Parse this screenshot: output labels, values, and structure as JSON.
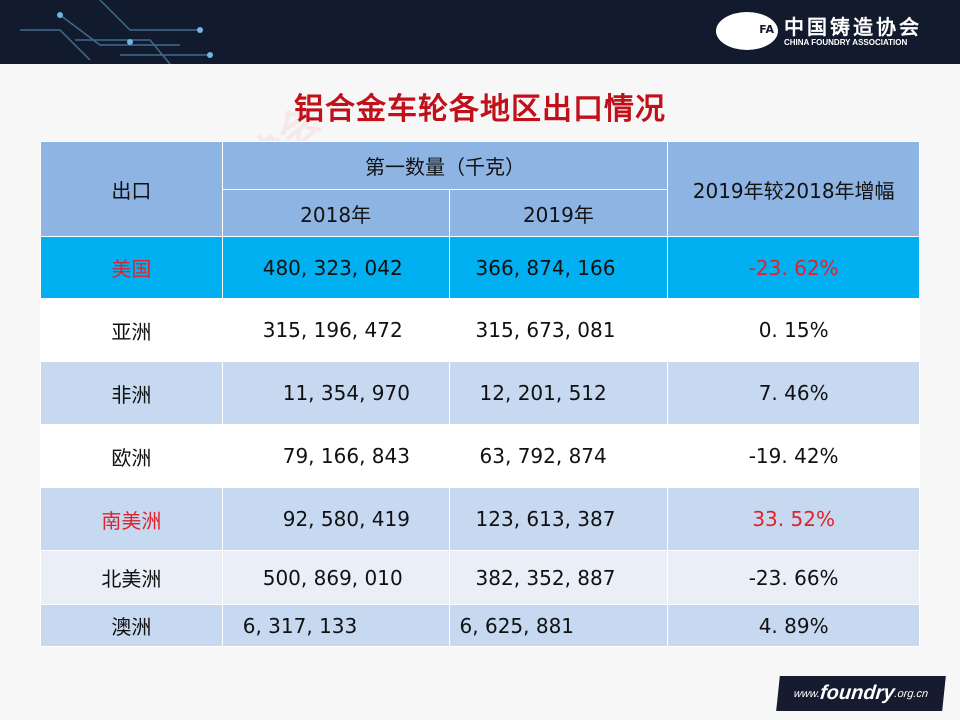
{
  "header": {
    "logo_cn": "中国铸造协会",
    "logo_en": "CHINA FOUNDRY ASSOCIATION",
    "logo_mark": "FA"
  },
  "title": "铝合金车轮各地区出口情况",
  "table": {
    "col_export": "出口",
    "col_group": "第一数量（千克）",
    "col_2018": "2018年",
    "col_2019": "2019年",
    "col_growth": "2019年较2018年增幅",
    "rows": [
      {
        "region": "美国",
        "v2018": "480, 323, 042",
        "v2019": "366, 874, 166",
        "growth": "-23. 62%",
        "highlight": true
      },
      {
        "region": "亚洲",
        "v2018": "315, 196, 472",
        "v2019": "315, 673, 081",
        "growth": "0. 15%"
      },
      {
        "region": "非洲",
        "v2018": "11, 354, 970",
        "v2019": "12, 201, 512",
        "growth": "7. 46%"
      },
      {
        "region": "欧洲",
        "v2018": "79, 166, 843",
        "v2019": "63, 792, 874",
        "growth": "-19. 42%"
      },
      {
        "region": "南美洲",
        "v2018": "92, 580, 419",
        "v2019": "123, 613, 387",
        "growth": "33. 52%",
        "red": true
      },
      {
        "region": "北美洲",
        "v2018": "500, 869, 010",
        "v2019": "382, 352, 887",
        "growth": "-23. 66%"
      },
      {
        "region": "澳洲",
        "v2018": "6, 317, 133",
        "v2019": "6, 625, 881",
        "growth": "4. 89%"
      }
    ]
  },
  "footer": {
    "www": "www.",
    "brand": "foundry",
    "tld": ".org.cn"
  },
  "colors": {
    "header_bg": "#121a2d",
    "title": "#c0111a",
    "table_header": "#8eb4e3",
    "usa_row": "#00b0f0",
    "band": "#c6d9f1",
    "red_text": "#e0222b"
  }
}
